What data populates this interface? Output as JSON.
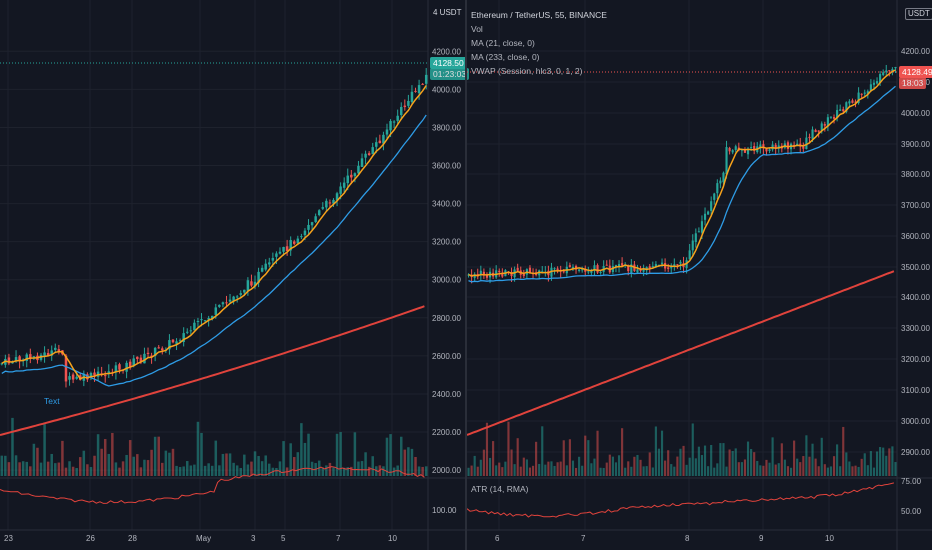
{
  "left_chart": {
    "currency": "4 USDT",
    "price_tag": "4128.50",
    "timer_tag": "01:23:03",
    "y_ticks": [
      "4200.00",
      "4000.00",
      "3800.00",
      "3600.00",
      "3400.00",
      "3200.00",
      "3000.00",
      "2800.00",
      "2600.00",
      "2400.00",
      "2200.00",
      "2000.00"
    ],
    "x_ticks": [
      "23",
      "26",
      "28",
      "May",
      "3",
      "5",
      "7",
      "10"
    ],
    "indicator_tick": "100.00",
    "drawing_label": "Text",
    "colors": {
      "ma21": "#f7a21b",
      "ma233": "#e0433c",
      "vwap": "#2e9ce6",
      "up": "#26a69a",
      "down": "#ef5350",
      "atr": "#e0433c"
    }
  },
  "right_chart": {
    "currency": "USDT",
    "legend": {
      "symbol": "Ethereum / TetherUS, 55, BINANCE",
      "vol": "Vol",
      "ma21": "MA (21, close, 0)",
      "ma233": "MA (233, close, 0)",
      "vwap": "VWAP (Session, hlc3, 0, 1, 2)"
    },
    "atr_label": "ATR (14, RMA)",
    "price_tag": "4128.49",
    "timer_tag": "18:03",
    "y_ticks": [
      "4200.00",
      "4100.00",
      "4000.00",
      "3900.00",
      "3800.00",
      "3700.00",
      "3600.00",
      "3500.00",
      "3400.00",
      "3300.00",
      "3200.00",
      "3100.00",
      "3000.00",
      "2900.00"
    ],
    "x_ticks": [
      "6",
      "7",
      "8",
      "9",
      "10"
    ],
    "indicator_ticks": [
      "75.00",
      "50.00"
    ]
  }
}
